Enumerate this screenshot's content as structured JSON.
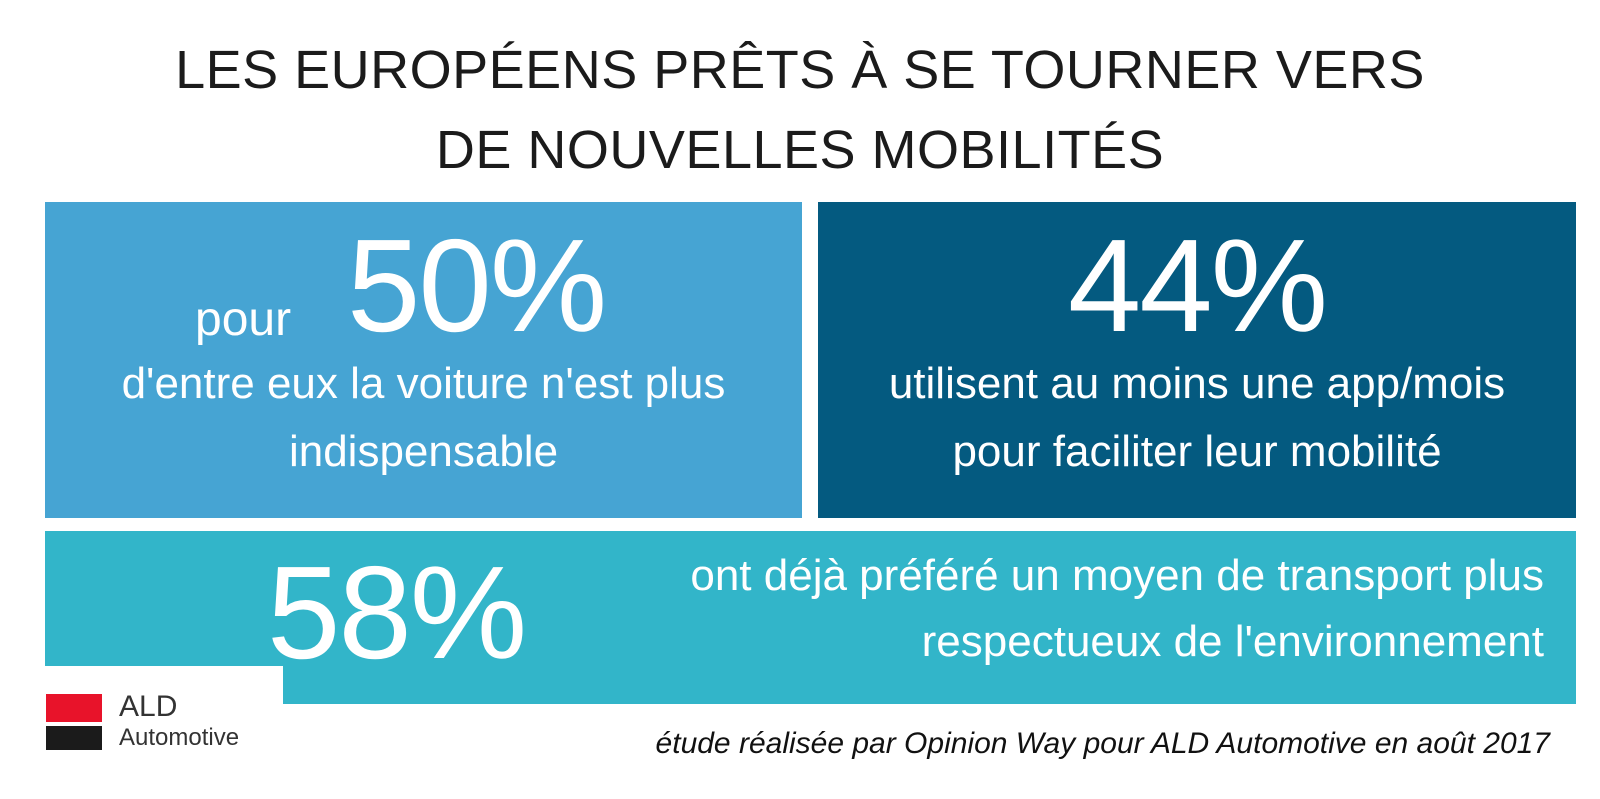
{
  "title": {
    "line1": "LES EUROPÉENS PRÊTS À SE TOURNER VERS",
    "line2": "DE NOUVELLES MOBILITÉS"
  },
  "stats": {
    "car_not_essential": {
      "prefix": "pour",
      "value": "50%",
      "line1": "d'entre eux la voiture n'est plus",
      "line2": "indispensable"
    },
    "app_users": {
      "value": "44%",
      "line1": "utilisent au moins une app/mois",
      "line2": "pour faciliter leur mobilité"
    },
    "eco_transport": {
      "value": "58%",
      "line1": "ont déjà préféré un moyen de transport plus",
      "line2": "respectueux de l'environnement"
    }
  },
  "logo": {
    "name": "ALD",
    "sub": "Automotive"
  },
  "footnote": "étude réalisée par Opinion Way pour ALD Automotive en août 2017",
  "colors": {
    "card_50": "#46a4d3",
    "card_44": "#045a80",
    "card_58": "#32b5c9",
    "logo_red": "#e8132a",
    "logo_black": "#1b1b1b"
  }
}
